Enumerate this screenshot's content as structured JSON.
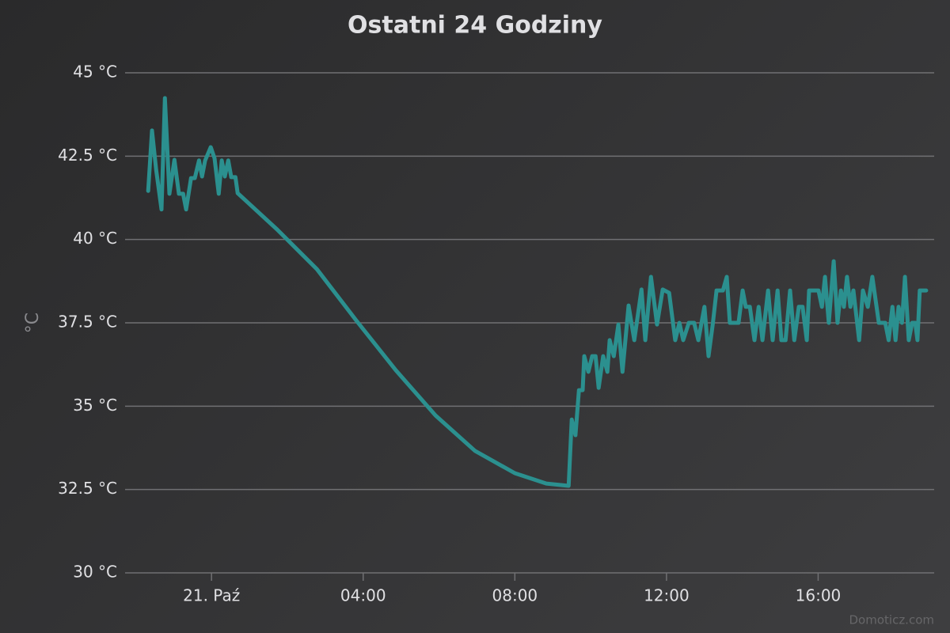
{
  "chart_data": {
    "type": "line",
    "title": "Ostatni 24 Godziny",
    "ylabel": "°C",
    "credits": "Domoticz.com",
    "color": "#2b908f",
    "grid": true,
    "xlim": [
      -2.28,
      19.06
    ],
    "xticks": [
      {
        "value": 0,
        "label": "21. Paź"
      },
      {
        "value": 4,
        "label": "04:00"
      },
      {
        "value": 8,
        "label": "08:00"
      },
      {
        "value": 12,
        "label": "12:00"
      },
      {
        "value": 16,
        "label": "16:00"
      }
    ],
    "ylim": [
      30,
      45
    ],
    "yticks": [
      {
        "value": 30,
        "label": "30 °C"
      },
      {
        "value": 32.5,
        "label": "32.5 °C"
      },
      {
        "value": 35,
        "label": "35 °C"
      },
      {
        "value": 37.5,
        "label": "37.5 °C"
      },
      {
        "value": 40,
        "label": "40 °C"
      },
      {
        "value": 42.5,
        "label": "42.5 °C"
      },
      {
        "value": 45,
        "label": "45 °C"
      }
    ],
    "x": [
      -1.67,
      -1.57,
      -1.46,
      -1.32,
      -1.23,
      -1.11,
      -0.98,
      -0.86,
      -0.75,
      -0.67,
      -0.54,
      -0.44,
      -0.33,
      -0.25,
      -0.17,
      -0.02,
      0.08,
      0.19,
      0.27,
      0.35,
      0.44,
      0.52,
      0.63,
      0.69,
      1.73,
      2.78,
      3.82,
      4.86,
      5.91,
      6.95,
      8.0,
      8.83,
      9.42,
      9.5,
      9.6,
      9.69,
      9.79,
      9.83,
      9.94,
      10.04,
      10.13,
      10.21,
      10.33,
      10.44,
      10.5,
      10.61,
      10.73,
      10.84,
      11.0,
      11.15,
      11.34,
      11.44,
      11.59,
      11.75,
      11.9,
      12.07,
      12.23,
      12.34,
      12.44,
      12.59,
      12.73,
      12.84,
      13.0,
      13.11,
      13.22,
      13.32,
      13.49,
      13.59,
      13.67,
      13.9,
      14.01,
      14.09,
      14.2,
      14.32,
      14.43,
      14.53,
      14.68,
      14.8,
      14.93,
      15.03,
      15.14,
      15.26,
      15.37,
      15.49,
      15.59,
      15.7,
      15.76,
      16.01,
      16.1,
      16.18,
      16.28,
      16.41,
      16.51,
      16.6,
      16.68,
      16.76,
      16.85,
      16.93,
      17.08,
      17.18,
      17.31,
      17.43,
      17.6,
      17.77,
      17.86,
      17.96,
      18.04,
      18.12,
      18.21,
      18.29,
      18.39,
      18.48,
      18.56,
      18.62,
      18.68,
      18.85
    ],
    "values": [
      41.46,
      43.27,
      42.08,
      40.9,
      44.24,
      41.37,
      42.39,
      41.37,
      41.37,
      40.9,
      41.84,
      41.84,
      42.37,
      41.89,
      42.37,
      42.77,
      42.44,
      41.37,
      42.37,
      41.89,
      42.37,
      41.87,
      41.87,
      41.39,
      40.3,
      39.11,
      37.57,
      36.08,
      34.72,
      33.66,
      32.99,
      32.68,
      32.61,
      34.6,
      34.13,
      35.48,
      35.48,
      36.5,
      36.03,
      36.5,
      36.5,
      35.55,
      36.5,
      36.03,
      36.98,
      36.5,
      37.45,
      36.03,
      38.02,
      36.98,
      38.5,
      36.98,
      38.88,
      37.45,
      38.5,
      38.4,
      36.98,
      37.5,
      36.98,
      37.5,
      37.5,
      36.98,
      37.98,
      36.5,
      37.45,
      38.47,
      38.47,
      38.88,
      37.5,
      37.5,
      38.47,
      37.98,
      37.98,
      36.98,
      37.98,
      36.98,
      38.47,
      36.98,
      38.47,
      36.98,
      36.98,
      38.47,
      36.98,
      37.98,
      37.98,
      36.98,
      38.47,
      38.47,
      37.98,
      38.88,
      37.5,
      39.35,
      37.5,
      38.47,
      37.98,
      38.88,
      37.98,
      38.47,
      36.98,
      38.47,
      37.98,
      38.88,
      37.5,
      37.5,
      36.98,
      37.98,
      36.98,
      37.98,
      37.5,
      38.88,
      36.98,
      37.5,
      37.5,
      36.98,
      38.47,
      38.47
    ]
  }
}
